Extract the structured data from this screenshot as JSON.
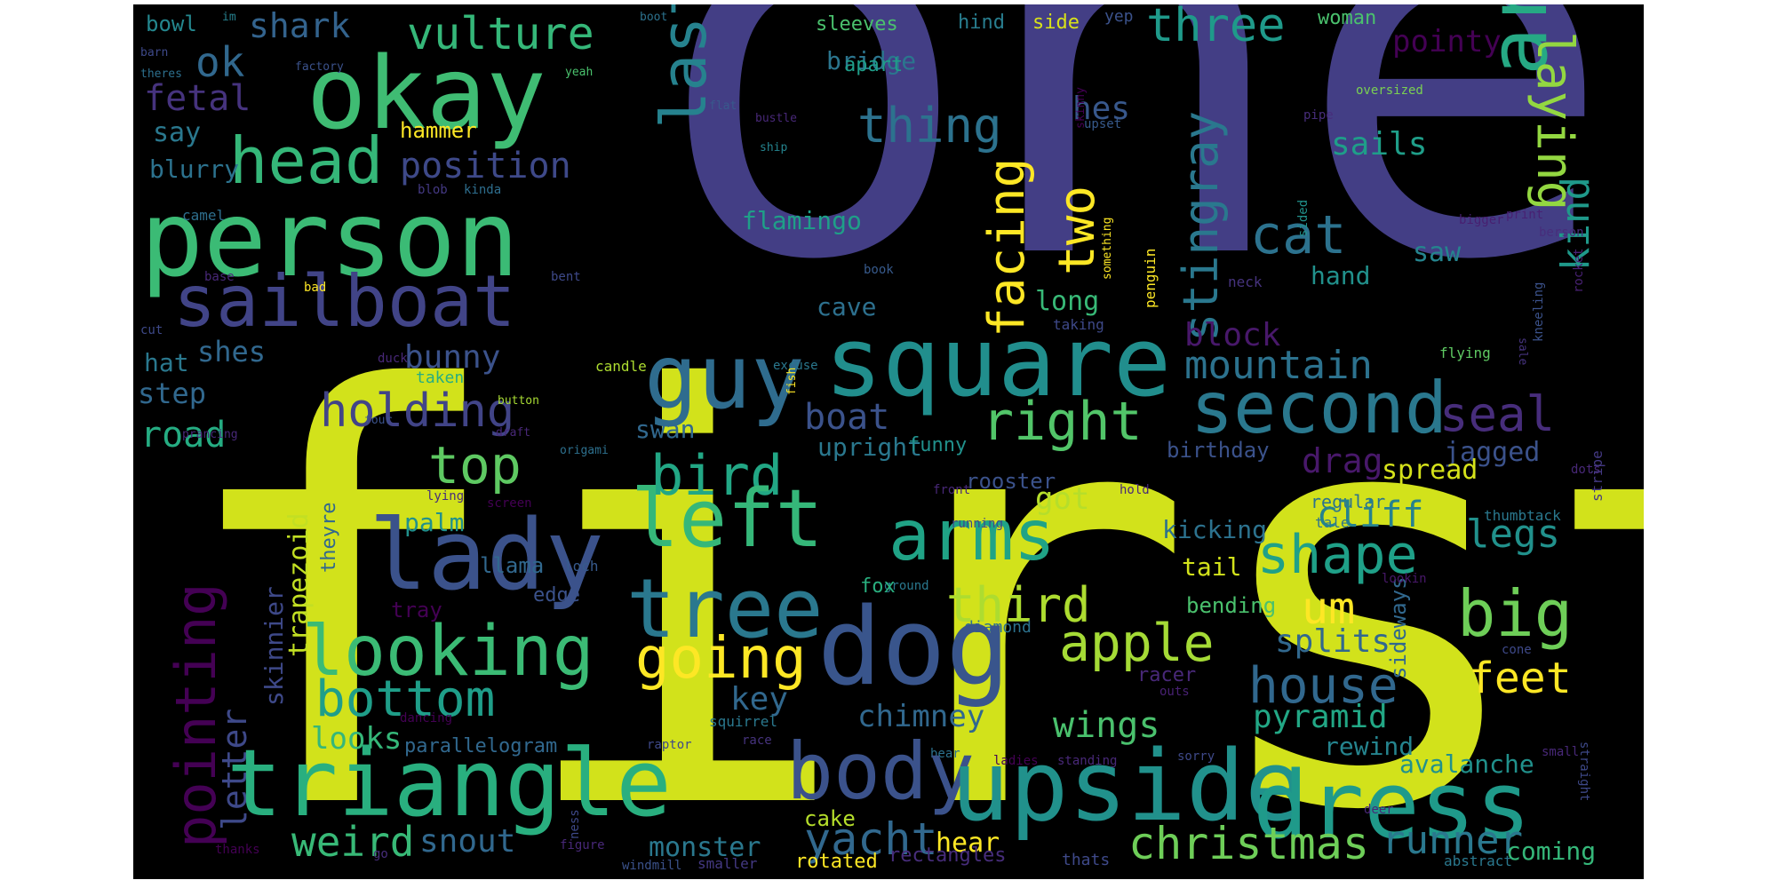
{
  "words": [
    {
      "text": "one",
      "color": "#433e85"
    },
    {
      "text": "first",
      "color": "#d2e21b"
    },
    {
      "text": "person",
      "color": "#3bbb75"
    },
    {
      "text": "okay",
      "color": "#3fbc73"
    },
    {
      "text": "sailboat",
      "color": "#414487"
    },
    {
      "text": "head",
      "color": "#35b779"
    },
    {
      "text": "ok",
      "color": "#31688e"
    },
    {
      "text": "fetal",
      "color": "#46337e"
    },
    {
      "text": "shark",
      "color": "#33638d"
    },
    {
      "text": "vulture",
      "color": "#35b779"
    },
    {
      "text": "bowl",
      "color": "#24878e"
    },
    {
      "text": "im",
      "color": "#27808e"
    },
    {
      "text": "boot",
      "color": "#2c728e"
    },
    {
      "text": "barn",
      "color": "#3e4989"
    },
    {
      "text": "theres",
      "color": "#2d708e"
    },
    {
      "text": "factory",
      "color": "#3b528b"
    },
    {
      "text": "yeah",
      "color": "#4ac16d"
    },
    {
      "text": "say",
      "color": "#2a788e"
    },
    {
      "text": "blurry",
      "color": "#2c728e"
    },
    {
      "text": "hammer",
      "color": "#fde725"
    },
    {
      "text": "position",
      "color": "#3e4989"
    },
    {
      "text": "blob",
      "color": "#443983"
    },
    {
      "text": "kinda",
      "color": "#2e6e8e"
    },
    {
      "text": "camel",
      "color": "#2e6f8e"
    },
    {
      "text": "base",
      "color": "#482878"
    },
    {
      "text": "bad",
      "color": "#fde725"
    },
    {
      "text": "cut",
      "color": "#3e4989"
    },
    {
      "text": "hat",
      "color": "#2a788e"
    },
    {
      "text": "step",
      "color": "#31688e"
    },
    {
      "text": "shes",
      "color": "#31688e"
    },
    {
      "text": "bunny",
      "color": "#3b528b"
    },
    {
      "text": "duck",
      "color": "#482878"
    },
    {
      "text": "taken",
      "color": "#27ad81"
    },
    {
      "text": "holding",
      "color": "#414487"
    },
    {
      "text": "road",
      "color": "#25ac82"
    },
    {
      "text": "button",
      "color": "#a8db34"
    },
    {
      "text": "four",
      "color": "#3b528b"
    },
    {
      "text": "prancing",
      "color": "#482878"
    },
    {
      "text": "origami",
      "color": "#2d708e"
    },
    {
      "text": "draft",
      "color": "#482878"
    },
    {
      "text": "last",
      "color": "#26828e"
    },
    {
      "text": "flamingo",
      "color": "#1f9f88"
    },
    {
      "text": "flat",
      "color": "#38598c"
    },
    {
      "text": "ship",
      "color": "#25848e"
    },
    {
      "text": "bustle",
      "color": "#482878"
    },
    {
      "text": "thing",
      "color": "#2c728e"
    },
    {
      "text": "bridge",
      "color": "#2b758e"
    },
    {
      "text": "apart",
      "color": "#1f9e89"
    },
    {
      "text": "sleeves",
      "color": "#4ac16d"
    },
    {
      "text": "hind",
      "color": "#287d8e"
    },
    {
      "text": "side",
      "color": "#d8e219"
    },
    {
      "text": "yep",
      "color": "#3b528b"
    },
    {
      "text": "woman",
      "color": "#4ac16d"
    },
    {
      "text": "three",
      "color": "#1f9a8a"
    },
    {
      "text": "pointy",
      "color": "#440154"
    },
    {
      "text": "arrow",
      "color": "#26a984"
    },
    {
      "text": "laying",
      "color": "#93d741"
    },
    {
      "text": "kind",
      "color": "#1f998a"
    },
    {
      "text": "oversized",
      "color": "#7ad151"
    },
    {
      "text": "pipe",
      "color": "#472d7b"
    },
    {
      "text": "upset",
      "color": "#375a8c"
    },
    {
      "text": "hes",
      "color": "#38588c"
    },
    {
      "text": "sails",
      "color": "#1f9e89"
    },
    {
      "text": "skinny",
      "color": "#440154"
    },
    {
      "text": "something",
      "color": "#fde725"
    },
    {
      "text": "bigger",
      "color": "#481f70"
    },
    {
      "text": "print",
      "color": "#482173"
    },
    {
      "text": "berson",
      "color": "#472d7b"
    },
    {
      "text": "rocket",
      "color": "#482173"
    },
    {
      "text": "facing",
      "color": "#fde725"
    },
    {
      "text": "two",
      "color": "#fde725"
    },
    {
      "text": "stingray",
      "color": "#2a788e"
    },
    {
      "text": "cat",
      "color": "#2c728e"
    },
    {
      "text": "saw",
      "color": "#25848e"
    },
    {
      "text": "hand",
      "color": "#21918c"
    },
    {
      "text": "sided",
      "color": "#21918c"
    },
    {
      "text": "penguin",
      "color": "#fde725"
    },
    {
      "text": "neck",
      "color": "#46337e"
    },
    {
      "text": "book",
      "color": "#375a8c"
    },
    {
      "text": "taking",
      "color": "#3e4989"
    },
    {
      "text": "long",
      "color": "#38b977"
    },
    {
      "text": "cave",
      "color": "#2d708e"
    },
    {
      "text": "square",
      "color": "#218e8d"
    },
    {
      "text": "guy",
      "color": "#2f6c8e"
    },
    {
      "text": "block",
      "color": "#48186a"
    },
    {
      "text": "mountain",
      "color": "#2c728e"
    },
    {
      "text": "second",
      "color": "#2a788e"
    },
    {
      "text": "seal",
      "color": "#472d7b"
    },
    {
      "text": "right",
      "color": "#52c569"
    },
    {
      "text": "boat",
      "color": "#3b528b"
    },
    {
      "text": "jagged",
      "color": "#3b528b"
    },
    {
      "text": "spread",
      "color": "#d5e21a"
    },
    {
      "text": "flying",
      "color": "#5ec962"
    },
    {
      "text": "sale",
      "color": "#46337e"
    },
    {
      "text": "kneeling",
      "color": "#3b528b"
    },
    {
      "text": "excuse",
      "color": "#2a788e"
    },
    {
      "text": "candle",
      "color": "#addc30"
    },
    {
      "text": "upright",
      "color": "#2a788e"
    },
    {
      "text": "funny",
      "color": "#21918c"
    },
    {
      "text": "birthday",
      "color": "#3b528b"
    },
    {
      "text": "swan",
      "color": "#31688e"
    },
    {
      "text": "top",
      "color": "#5ec962"
    },
    {
      "text": "bird",
      "color": "#22a785"
    },
    {
      "text": "rooster",
      "color": "#3b528b"
    },
    {
      "text": "drag",
      "color": "#48186a"
    },
    {
      "text": "regular",
      "color": "#2c728e"
    },
    {
      "text": "hold",
      "color": "#482878"
    },
    {
      "text": "dots",
      "color": "#482878"
    },
    {
      "text": "stripe",
      "color": "#443983"
    },
    {
      "text": "tale",
      "color": "#2c728e"
    },
    {
      "text": "pointing",
      "color": "#440154"
    },
    {
      "text": "letter",
      "color": "#3e4989"
    },
    {
      "text": "skinnier",
      "color": "#3e4989"
    },
    {
      "text": "trapezoid",
      "color": "#c2df23"
    },
    {
      "text": "palm",
      "color": "#21918c"
    },
    {
      "text": "theyre",
      "color": "#31688e"
    },
    {
      "text": "lady",
      "color": "#3b528b"
    },
    {
      "text": "left",
      "color": "#35b779"
    },
    {
      "text": "arms",
      "color": "#20a386"
    },
    {
      "text": "got",
      "color": "#b5de2b"
    },
    {
      "text": "kicking",
      "color": "#2c728e"
    },
    {
      "text": "cliff",
      "color": "#26828e"
    },
    {
      "text": "shape",
      "color": "#1fa088"
    },
    {
      "text": "legs",
      "color": "#21918c"
    },
    {
      "text": "thumbtack",
      "color": "#2a788e"
    },
    {
      "text": "tree",
      "color": "#2a788e"
    },
    {
      "text": "third",
      "color": "#addc30"
    },
    {
      "text": "tail",
      "color": "#d2e21b"
    },
    {
      "text": "llama",
      "color": "#31688e"
    },
    {
      "text": "edge",
      "color": "#3b528b"
    },
    {
      "text": "loch",
      "color": "#375a8c"
    },
    {
      "text": "um",
      "color": "#fde725"
    },
    {
      "text": "bending",
      "color": "#4ac16d"
    },
    {
      "text": "sideways",
      "color": "#31688e"
    },
    {
      "text": "big",
      "color": "#6ece58"
    },
    {
      "text": "looking",
      "color": "#3bbb75"
    },
    {
      "text": "tray",
      "color": "#440154"
    },
    {
      "text": "ground",
      "color": "#2a788e"
    },
    {
      "text": "running",
      "color": "#3e4989"
    },
    {
      "text": "fox",
      "color": "#29af7f"
    },
    {
      "text": "diamond",
      "color": "#2c728e"
    },
    {
      "text": "lookin",
      "color": "#48186a"
    },
    {
      "text": "cone",
      "color": "#3e4989"
    },
    {
      "text": "going",
      "color": "#fde725"
    },
    {
      "text": "dog",
      "color": "#39558c"
    },
    {
      "text": "apple",
      "color": "#a5db36"
    },
    {
      "text": "splits",
      "color": "#31688e"
    },
    {
      "text": "house",
      "color": "#31688e"
    },
    {
      "text": "feet",
      "color": "#fde725"
    },
    {
      "text": "bottom",
      "color": "#1f9e89"
    },
    {
      "text": "key",
      "color": "#31688e"
    },
    {
      "text": "racer",
      "color": "#482878"
    },
    {
      "text": "outs",
      "color": "#482173"
    },
    {
      "text": "pyramid",
      "color": "#22a785"
    },
    {
      "text": "chimney",
      "color": "#31688e"
    },
    {
      "text": "wings",
      "color": "#4ac16d"
    },
    {
      "text": "looks",
      "color": "#35b779"
    },
    {
      "text": "parallelogram",
      "color": "#31688e"
    },
    {
      "text": "dancing",
      "color": "#440154"
    },
    {
      "text": "squirrel",
      "color": "#2a788e"
    },
    {
      "text": "raptor",
      "color": "#3e4989"
    },
    {
      "text": "race",
      "color": "#46337e"
    },
    {
      "text": "bear",
      "color": "#2c728e"
    },
    {
      "text": "rewind",
      "color": "#25848e"
    },
    {
      "text": "avalanche",
      "color": "#21918c"
    },
    {
      "text": "small",
      "color": "#482878"
    },
    {
      "text": "straight",
      "color": "#3e4989"
    },
    {
      "text": "triangle",
      "color": "#29af7f"
    },
    {
      "text": "body",
      "color": "#3b528b"
    },
    {
      "text": "upside",
      "color": "#21918c"
    },
    {
      "text": "dress",
      "color": "#1f9a8a"
    },
    {
      "text": "weird",
      "color": "#38b977"
    },
    {
      "text": "snout",
      "color": "#31688e"
    },
    {
      "text": "yacht",
      "color": "#31688e"
    },
    {
      "text": "cake",
      "color": "#b5de2b"
    },
    {
      "text": "monster",
      "color": "#2a788e"
    },
    {
      "text": "hear",
      "color": "#fde725"
    },
    {
      "text": "christmas",
      "color": "#6ece58"
    },
    {
      "text": "runner",
      "color": "#2a788e"
    },
    {
      "text": "coming",
      "color": "#35b779"
    },
    {
      "text": "ladies",
      "color": "#440154"
    },
    {
      "text": "standing",
      "color": "#482878"
    },
    {
      "text": "sorry",
      "color": "#3e4989"
    },
    {
      "text": "deer",
      "color": "#482878"
    },
    {
      "text": "abstract",
      "color": "#2a788e"
    },
    {
      "text": "thanks",
      "color": "#440154"
    },
    {
      "text": "go",
      "color": "#472d7b"
    },
    {
      "text": "ness",
      "color": "#3e4989"
    },
    {
      "text": "figure",
      "color": "#482878"
    },
    {
      "text": "windmill",
      "color": "#3b528b"
    },
    {
      "text": "smaller",
      "color": "#443983"
    },
    {
      "text": "rotated",
      "color": "#fde725"
    },
    {
      "text": "rectangles",
      "color": "#472d7b"
    },
    {
      "text": "thats",
      "color": "#3e4989"
    },
    {
      "text": "front",
      "color": "#482878"
    },
    {
      "text": "fish",
      "color": "#fde725"
    },
    {
      "text": "screen",
      "color": "#440154"
    },
    {
      "text": "lying",
      "color": "#472d7b"
    },
    {
      "text": "bent",
      "color": "#3e4989"
    }
  ]
}
